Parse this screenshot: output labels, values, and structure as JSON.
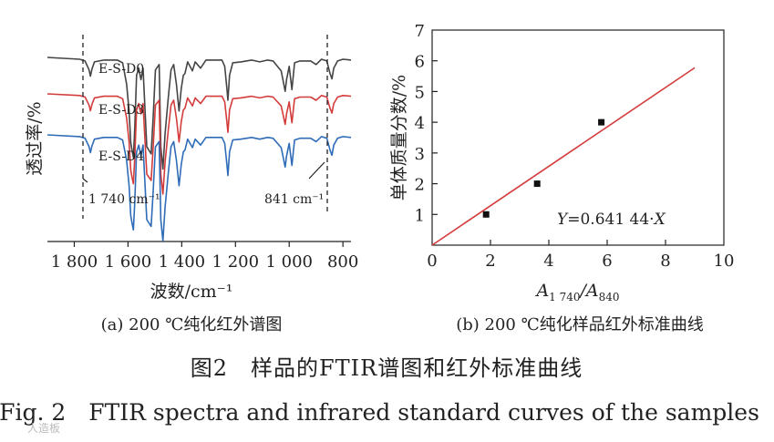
{
  "figure": {
    "caption_cn": "图2　样品的FTIR谱图和红外标准曲线",
    "caption_en": "Fig. 2　FTIR spectra and infrared standard curves of the samples",
    "watermark": "人造板"
  },
  "chart_data": [
    {
      "type": "line",
      "panel": "(a)",
      "caption": "(a) 200 ℃纯化红外谱图",
      "xlabel": "波数/cm⁻¹",
      "ylabel": "透过率/%",
      "xlim": [
        1900,
        770
      ],
      "x_ticks": [
        1800,
        1600,
        1400,
        1200,
        1000,
        800
      ],
      "x_tick_labels": [
        "1 800",
        "1 600",
        "1 400",
        "1 200",
        "1 000",
        "800"
      ],
      "series": [
        {
          "name": "E-S-D0",
          "color": "#444444"
        },
        {
          "name": "E-S-D3",
          "color": "#d43c3c"
        },
        {
          "name": "E-S-D4",
          "color": "#2f6cb8"
        }
      ],
      "annotations": [
        {
          "text": "1 740 cm⁻¹",
          "x": 1740
        },
        {
          "text": "841 cm⁻¹",
          "x": 841
        }
      ]
    },
    {
      "type": "scatter",
      "panel": "(b)",
      "caption": "(b) 200 ℃纯化样品红外标准曲线",
      "xlabel_main": "A",
      "xlabel_sub1": "1 740",
      "xlabel_sep": "/A",
      "xlabel_sub2": "840",
      "ylabel": "单体质量分数/%",
      "xlim": [
        0,
        10
      ],
      "ylim": [
        0,
        7
      ],
      "x_ticks": [
        0,
        2,
        4,
        6,
        8,
        10
      ],
      "y_ticks": [
        1,
        2,
        3,
        4,
        5,
        6,
        7
      ],
      "points": [
        {
          "x": 1.85,
          "y": 1
        },
        {
          "x": 3.6,
          "y": 2
        },
        {
          "x": 5.8,
          "y": 4
        }
      ],
      "fit": {
        "slope": 0.64144,
        "x_range": [
          0,
          9
        ]
      },
      "equation_prefix": "Y",
      "equation_mid": "=0.641 44·",
      "equation_var": "X"
    }
  ]
}
